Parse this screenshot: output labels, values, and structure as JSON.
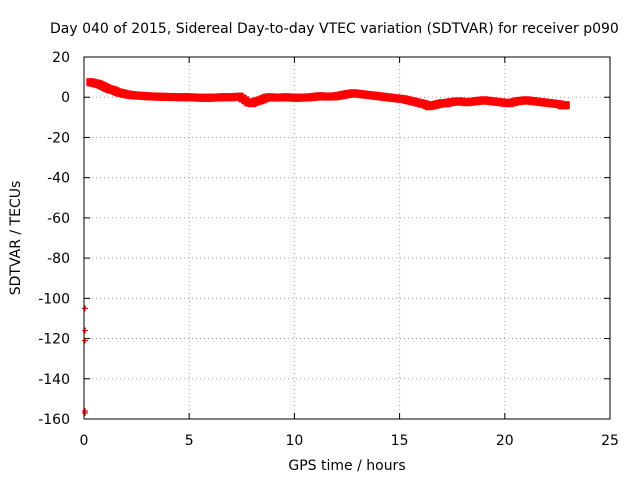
{
  "chart_data": {
    "type": "scatter",
    "title": "Day 040 of 2015, Sidereal Day-to-day VTEC variation (SDTVAR) for receiver p090",
    "xlabel": "GPS time / hours",
    "ylabel": "SDTVAR / TECUs",
    "xlim": [
      0,
      25
    ],
    "ylim": [
      -160,
      20
    ],
    "x_ticks": [
      0,
      5,
      10,
      15,
      20,
      25
    ],
    "y_ticks": [
      20,
      0,
      -20,
      -40,
      -60,
      -80,
      -100,
      -120,
      -140,
      -160
    ],
    "grid": true,
    "legend": "none",
    "marker_color": "#ff0000",
    "series": [
      {
        "name": "SDTVAR",
        "x": [
          0.3,
          0.5,
          0.7,
          0.9,
          1.0,
          1.2,
          1.4,
          1.6,
          1.8,
          2.0,
          2.3,
          2.6,
          3.0,
          3.4,
          3.8,
          4.2,
          4.6,
          5.0,
          5.4,
          5.8,
          6.2,
          6.6,
          7.0,
          7.4,
          7.8,
          8.0,
          8.2,
          8.4,
          8.6,
          8.8,
          9.2,
          9.6,
          10.0,
          10.4,
          10.8,
          11.2,
          11.6,
          12.0,
          12.5,
          12.8,
          13.2,
          13.6,
          14.0,
          14.4,
          14.8,
          15.2,
          15.6,
          16.0,
          16.2,
          16.4,
          16.6,
          16.8,
          17.0,
          17.2,
          17.4,
          17.8,
          18.2,
          18.6,
          19.0,
          19.4,
          19.8,
          20.2,
          20.6,
          21.0,
          21.4,
          21.8,
          22.2,
          22.6,
          22.7,
          22.9,
          0.05,
          0.05,
          0.05,
          0.05,
          0.05
        ],
        "y": [
          7.5,
          7.0,
          6.5,
          5.5,
          5.0,
          4.0,
          3.5,
          2.5,
          2.0,
          1.5,
          1.0,
          0.8,
          0.5,
          0.3,
          0.2,
          0.1,
          0.0,
          0.0,
          -0.2,
          -0.3,
          -0.2,
          0.0,
          0.0,
          0.3,
          -2.5,
          -3.0,
          -2.0,
          -1.5,
          -0.5,
          0.0,
          -0.2,
          0.0,
          -0.3,
          -0.2,
          0.0,
          0.5,
          0.3,
          0.5,
          1.5,
          2.0,
          1.5,
          1.0,
          0.5,
          0.0,
          -0.5,
          -1.0,
          -2.0,
          -3.0,
          -3.5,
          -4.5,
          -4.0,
          -3.5,
          -3.0,
          -3.0,
          -2.5,
          -2.0,
          -2.5,
          -2.0,
          -1.5,
          -2.0,
          -2.5,
          -3.0,
          -2.0,
          -1.5,
          -2.0,
          -2.5,
          -3.0,
          -3.5,
          -4.0,
          -4.0,
          -105,
          -116,
          -121,
          -156,
          -157
        ]
      }
    ]
  }
}
